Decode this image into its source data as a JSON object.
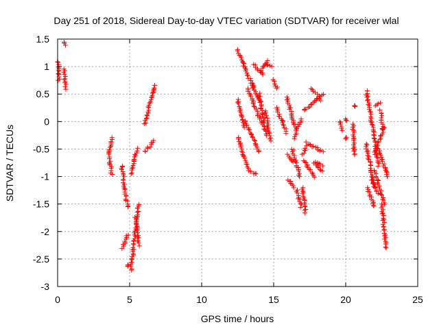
{
  "chart_data": {
    "type": "scatter",
    "title": "Day 251 of 2018, Sidereal Day-to-day VTEC variation (SDTVAR) for receiver wlal",
    "xlabel": "GPS time / hours",
    "ylabel": "SDTVAR / TECUs",
    "xlim": [
      0,
      25
    ],
    "ylim": [
      -3,
      1.5
    ],
    "xticks": [
      0,
      5,
      10,
      15,
      20,
      25
    ],
    "xtick_labels": [
      "0",
      "5",
      "10",
      "15",
      "20",
      "25"
    ],
    "yticks": [
      -3,
      -2.5,
      -2,
      -1.5,
      -1,
      -0.5,
      0,
      0.5,
      1,
      1.5
    ],
    "ytick_labels": [
      "-3",
      "-2.5",
      "-2",
      "-1.5",
      "-1",
      "-0.5",
      "0",
      "0.5",
      "1",
      "1.5"
    ],
    "grid": true,
    "marker": "+",
    "marker_color": "#ff0000",
    "segments": [
      {
        "x": [
          0.05,
          0.08
        ],
        "y": [
          1.1,
          0.75
        ]
      },
      {
        "x": [
          0.4,
          0.5
        ],
        "y": [
          1.45,
          1.4
        ]
      },
      {
        "x": [
          0.45,
          0.55
        ],
        "y": [
          0.95,
          0.6
        ]
      },
      {
        "x": [
          3.55,
          3.75
        ],
        "y": [
          -0.6,
          -0.3
        ]
      },
      {
        "x": [
          3.6,
          3.75
        ],
        "y": [
          -0.65,
          -0.95
        ]
      },
      {
        "x": [
          4.45,
          4.85
        ],
        "y": [
          -0.8,
          -1.55
        ]
      },
      {
        "x": [
          4.5,
          4.85
        ],
        "y": [
          -2.3,
          -2.05
        ]
      },
      {
        "x": [
          4.85,
          4.85
        ],
        "y": [
          -2.62,
          -2.62
        ]
      },
      {
        "x": [
          5.1,
          5.5
        ],
        "y": [
          -0.95,
          -0.5
        ]
      },
      {
        "x": [
          5.1,
          5.6
        ],
        "y": [
          -2.7,
          -1.5
        ]
      },
      {
        "x": [
          5.4,
          5.65
        ],
        "y": [
          -1.75,
          -2.25
        ]
      },
      {
        "x": [
          6.05,
          6.7
        ],
        "y": [
          -0.05,
          0.65
        ]
      },
      {
        "x": [
          6.05,
          6.7
        ],
        "y": [
          -0.55,
          -0.35
        ]
      },
      {
        "x": [
          12.5,
          13.6
        ],
        "y": [
          1.3,
          0.6
        ]
      },
      {
        "x": [
          13.5,
          14.0
        ],
        "y": [
          0.7,
          0.35
        ]
      },
      {
        "x": [
          12.5,
          12.95
        ],
        "y": [
          0.4,
          -0.1
        ]
      },
      {
        "x": [
          12.55,
          13.2
        ],
        "y": [
          -0.3,
          -0.85
        ]
      },
      {
        "x": [
          13.2,
          13.8
        ],
        "y": [
          -0.9,
          -0.95
        ]
      },
      {
        "x": [
          13.0,
          14.0
        ],
        "y": [
          0.0,
          -0.55
        ]
      },
      {
        "x": [
          13.2,
          14.2
        ],
        "y": [
          0.6,
          -0.05
        ]
      },
      {
        "x": [
          14.0,
          14.45
        ],
        "y": [
          0.5,
          -0.25
        ]
      },
      {
        "x": [
          14.1,
          14.6
        ],
        "y": [
          0.9,
          1.1
        ]
      },
      {
        "x": [
          14.4,
          14.85
        ],
        "y": [
          1.05,
          1.0
        ]
      },
      {
        "x": [
          13.6,
          14.25
        ],
        "y": [
          1.05,
          0.85
        ]
      },
      {
        "x": [
          14.4,
          14.8
        ],
        "y": [
          0.2,
          -0.35
        ]
      },
      {
        "x": [
          15.0,
          15.25
        ],
        "y": [
          0.75,
          0.6
        ]
      },
      {
        "x": [
          15.2,
          15.9
        ],
        "y": [
          0.25,
          -0.2
        ]
      },
      {
        "x": [
          15.9,
          16.5
        ],
        "y": [
          0.45,
          -0.1
        ]
      },
      {
        "x": [
          16.4,
          16.9
        ],
        "y": [
          -0.3,
          0.05
        ]
      },
      {
        "x": [
          16.0,
          16.3
        ],
        "y": [
          -0.6,
          -0.75
        ]
      },
      {
        "x": [
          16.3,
          16.8
        ],
        "y": [
          -0.5,
          -1.0
        ]
      },
      {
        "x": [
          16.0,
          16.4
        ],
        "y": [
          -1.05,
          -1.2
        ]
      },
      {
        "x": [
          16.6,
          16.9
        ],
        "y": [
          -1.25,
          -1.55
        ]
      },
      {
        "x": [
          17.0,
          17.2
        ],
        "y": [
          -1.2,
          -1.65
        ]
      },
      {
        "x": [
          17.0,
          17.3
        ],
        "y": [
          -0.6,
          -0.45
        ]
      },
      {
        "x": [
          17.3,
          18.4
        ],
        "y": [
          -0.38,
          -0.55
        ]
      },
      {
        "x": [
          17.1,
          17.8
        ],
        "y": [
          -0.7,
          -1.0
        ]
      },
      {
        "x": [
          17.8,
          18.4
        ],
        "y": [
          -0.75,
          -0.9
        ]
      },
      {
        "x": [
          17.9,
          18.4
        ],
        "y": [
          -0.75,
          -0.8
        ]
      },
      {
        "x": [
          17.1,
          18.4
        ],
        "y": [
          0.2,
          0.5
        ]
      },
      {
        "x": [
          17.6,
          18.0
        ],
        "y": [
          0.6,
          0.5
        ]
      },
      {
        "x": [
          18.1,
          18.3
        ],
        "y": [
          0.45,
          0.38
        ]
      },
      {
        "x": [
          19.6,
          19.8
        ],
        "y": [
          0.0,
          -0.15
        ]
      },
      {
        "x": [
          20.0,
          20.05
        ],
        "y": [
          0.05,
          0.0
        ]
      },
      {
        "x": [
          20.0,
          20.05
        ],
        "y": [
          -0.3,
          -0.3
        ]
      },
      {
        "x": [
          20.5,
          20.6
        ],
        "y": [
          -0.05,
          -0.6
        ]
      },
      {
        "x": [
          20.6,
          20.6
        ],
        "y": [
          0.28,
          0.28
        ]
      },
      {
        "x": [
          21.45,
          22.3
        ],
        "y": [
          0.55,
          -0.8
        ]
      },
      {
        "x": [
          21.4,
          22.0
        ],
        "y": [
          -0.4,
          -1.2
        ]
      },
      {
        "x": [
          21.5,
          22.0
        ],
        "y": [
          -1.2,
          -1.55
        ]
      },
      {
        "x": [
          22.0,
          22.4
        ],
        "y": [
          0.3,
          0.35
        ]
      },
      {
        "x": [
          22.4,
          22.6
        ],
        "y": [
          0.2,
          -0.15
        ]
      },
      {
        "x": [
          22.0,
          22.7
        ],
        "y": [
          -0.6,
          -0.1
        ]
      },
      {
        "x": [
          22.3,
          22.9
        ],
        "y": [
          -0.5,
          -1.0
        ]
      },
      {
        "x": [
          22.0,
          22.7
        ],
        "y": [
          -0.9,
          -1.5
        ]
      },
      {
        "x": [
          22.5,
          22.8
        ],
        "y": [
          -1.5,
          -2.3
        ]
      },
      {
        "x": [
          21.8,
          22.2
        ],
        "y": [
          -1.05,
          -1.3
        ]
      }
    ]
  }
}
